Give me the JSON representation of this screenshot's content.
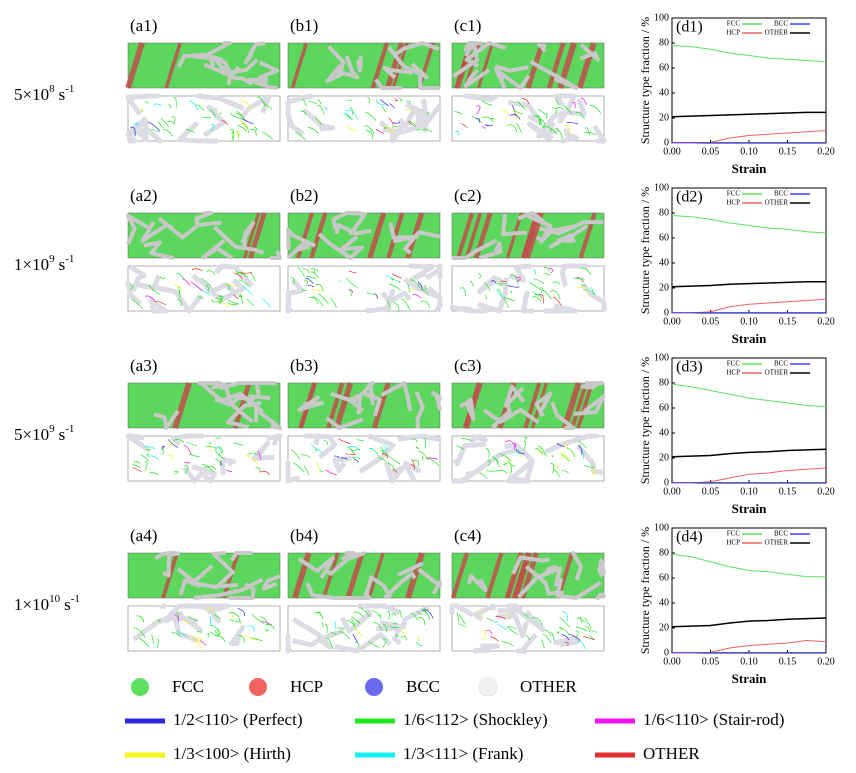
{
  "row_labels": [
    {
      "base": "5×10",
      "exponent": "8",
      "unit": "s",
      "unit_exponent": "-1"
    },
    {
      "base": "1×10",
      "exponent": "9",
      "unit": "s",
      "unit_exponent": "-1"
    },
    {
      "base": "5×10",
      "exponent": "9",
      "unit": "s",
      "unit_exponent": "-1"
    },
    {
      "base": "1×10",
      "exponent": "10",
      "unit": "s",
      "unit_exponent": "-1"
    }
  ],
  "panels": [
    [
      "(a1)",
      "(b1)",
      "(c1)"
    ],
    [
      "(a2)",
      "(b2)",
      "(c2)"
    ],
    [
      "(a3)",
      "(b3)",
      "(c3)"
    ],
    [
      "(a4)",
      "(b4)",
      "(c4)"
    ]
  ],
  "legend": {
    "structures": [
      {
        "label": "FCC",
        "color": "#5fe05f"
      },
      {
        "label": "HCP",
        "color": "#f06464"
      },
      {
        "label": "BCC",
        "color": "#6a6af0"
      },
      {
        "label": "OTHER",
        "color": "#f2f2f2"
      }
    ],
    "dislocations": [
      {
        "label": "1/2<110> (Perfect)",
        "color": "#2a2ae0"
      },
      {
        "label": "1/6<112> (Shockley)",
        "color": "#1ee81e"
      },
      {
        "label": "1/6<110> (Stair-rod)",
        "color": "#f010f0"
      },
      {
        "label": "1/3<100> (Hirth)",
        "color": "#f5f51a"
      },
      {
        "label": "1/3<111> (Frank)",
        "color": "#18f0f0"
      },
      {
        "label": "OTHER",
        "color": "#e03030"
      }
    ]
  },
  "chart_data": [
    {
      "type": "line",
      "title": "(d1)",
      "x_label": "Strain",
      "y_label": "Structure type fraction / %",
      "x": [
        0,
        0.025,
        0.05,
        0.075,
        0.1,
        0.125,
        0.15,
        0.175,
        0.2
      ],
      "series": [
        {
          "name": "FCC",
          "color": "#5fe05f",
          "values": [
            78,
            77,
            75,
            72,
            70,
            68,
            67,
            66,
            65
          ]
        },
        {
          "name": "HCP",
          "color": "#f06464",
          "values": [
            0,
            0,
            0.5,
            4,
            6,
            7,
            8,
            9,
            10
          ]
        },
        {
          "name": "BCC",
          "color": "#4040ff",
          "values": [
            0.3,
            0.3,
            0.3,
            0.3,
            0.3,
            0.3,
            0.3,
            0.3,
            0.3
          ]
        },
        {
          "name": "OTHER",
          "color": "#000000",
          "values": [
            21,
            21.5,
            22,
            22.5,
            23,
            23.5,
            24,
            24.5,
            24.5
          ]
        }
      ],
      "xlim": [
        0,
        0.2
      ],
      "ylim": [
        0,
        100
      ],
      "xticks": [
        {
          "value": 0,
          "label": "0.00"
        },
        {
          "value": 0.05,
          "label": "0.05"
        },
        {
          "value": 0.1,
          "label": "0.10"
        },
        {
          "value": 0.15,
          "label": "0.15"
        },
        {
          "value": 0.2,
          "label": "0.20"
        }
      ],
      "yticks": [
        0,
        20,
        40,
        60,
        80,
        100
      ]
    },
    {
      "type": "line",
      "title": "(d2)",
      "x_label": "Strain",
      "y_label": "Structure type fraction / %",
      "x": [
        0,
        0.025,
        0.05,
        0.075,
        0.1,
        0.125,
        0.15,
        0.175,
        0.2
      ],
      "series": [
        {
          "name": "FCC",
          "color": "#5fe05f",
          "values": [
            78,
            77,
            75,
            72,
            70,
            68,
            67,
            65,
            64
          ]
        },
        {
          "name": "HCP",
          "color": "#f06464",
          "values": [
            0,
            0,
            1,
            5,
            7,
            8,
            9,
            10,
            11
          ]
        },
        {
          "name": "BCC",
          "color": "#4040ff",
          "values": [
            0.3,
            0.3,
            0.3,
            0.3,
            0.3,
            0.3,
            0.3,
            0.3,
            0.3
          ]
        },
        {
          "name": "OTHER",
          "color": "#000000",
          "values": [
            21,
            21.5,
            22,
            23,
            23.5,
            24,
            24.5,
            25,
            25
          ]
        }
      ],
      "xlim": [
        0,
        0.2
      ],
      "ylim": [
        0,
        100
      ],
      "xticks": [
        {
          "value": 0,
          "label": "0.00"
        },
        {
          "value": 0.05,
          "label": "0.05"
        },
        {
          "value": 0.1,
          "label": "0.10"
        },
        {
          "value": 0.15,
          "label": "0.15"
        },
        {
          "value": 0.2,
          "label": "0.20"
        }
      ],
      "yticks": [
        0,
        20,
        40,
        60,
        80,
        100
      ]
    },
    {
      "type": "line",
      "title": "(d3)",
      "x_label": "Strain",
      "y_label": "Structure type fraction / %",
      "x": [
        0,
        0.025,
        0.05,
        0.075,
        0.1,
        0.125,
        0.15,
        0.175,
        0.2
      ],
      "series": [
        {
          "name": "FCC",
          "color": "#5fe05f",
          "values": [
            79,
            77,
            74,
            71,
            68,
            66,
            64,
            62,
            61
          ]
        },
        {
          "name": "HCP",
          "color": "#f06464",
          "values": [
            0,
            0,
            1,
            4,
            7,
            8,
            10,
            11,
            12
          ]
        },
        {
          "name": "BCC",
          "color": "#4040ff",
          "values": [
            0.3,
            0.3,
            0.3,
            0.3,
            0.3,
            0.3,
            0.3,
            0.3,
            0.3
          ]
        },
        {
          "name": "OTHER",
          "color": "#000000",
          "values": [
            21,
            21.5,
            22,
            23.5,
            24.5,
            25,
            26,
            26.5,
            27
          ]
        }
      ],
      "xlim": [
        0,
        0.2
      ],
      "ylim": [
        0,
        100
      ],
      "xticks": [
        {
          "value": 0,
          "label": "0.00"
        },
        {
          "value": 0.05,
          "label": "0.05"
        },
        {
          "value": 0.1,
          "label": "0.10"
        },
        {
          "value": 0.15,
          "label": "0.15"
        },
        {
          "value": 0.2,
          "label": "0.20"
        }
      ],
      "yticks": [
        0,
        20,
        40,
        60,
        80,
        100
      ]
    },
    {
      "type": "line",
      "title": "(d4)",
      "x_label": "Strain",
      "y_label": "Structure type fraction / %",
      "x": [
        0,
        0.025,
        0.05,
        0.075,
        0.1,
        0.125,
        0.15,
        0.175,
        0.2
      ],
      "series": [
        {
          "name": "FCC",
          "color": "#5fe05f",
          "values": [
            79,
            77,
            73,
            69,
            66,
            65,
            63,
            61,
            61
          ]
        },
        {
          "name": "HCP",
          "color": "#f06464",
          "values": [
            0,
            0,
            0.5,
            4,
            6,
            7,
            8,
            10,
            9
          ]
        },
        {
          "name": "BCC",
          "color": "#4040ff",
          "values": [
            0.3,
            0.3,
            0.3,
            0.3,
            0.3,
            0.3,
            0.3,
            0.3,
            0.3
          ]
        },
        {
          "name": "OTHER",
          "color": "#000000",
          "values": [
            21,
            21.5,
            22,
            24,
            25.5,
            26,
            27,
            27.5,
            28
          ]
        }
      ],
      "xlim": [
        0,
        0.2
      ],
      "ylim": [
        0,
        100
      ],
      "xticks": [
        {
          "value": 0,
          "label": "0.00"
        },
        {
          "value": 0.05,
          "label": "0.05"
        },
        {
          "value": 0.1,
          "label": "0.10"
        },
        {
          "value": 0.15,
          "label": "0.15"
        },
        {
          "value": 0.2,
          "label": "0.20"
        }
      ],
      "yticks": [
        0,
        20,
        40,
        60,
        80,
        100
      ]
    }
  ]
}
